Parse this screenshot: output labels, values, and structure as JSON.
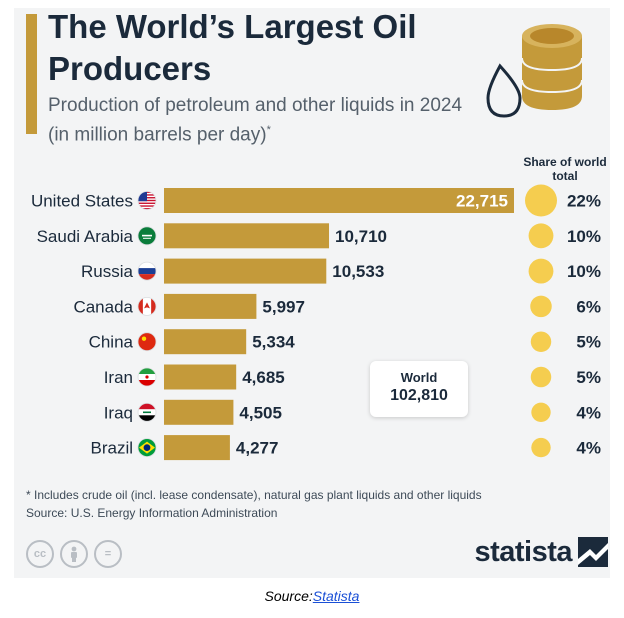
{
  "title": "The World’s Largest Oil Producers",
  "subtitle": "Production of petroleum and other liquids in 2024 (in million barrels per day)",
  "subtitle_mark": "*",
  "share_header": "Share of world total",
  "world": {
    "label": "World",
    "value": "102,810"
  },
  "footnote": "* Includes crude oil (incl. lease condensate), natural gas plant liquids and other liquids",
  "source_note": "Source: U.S. Energy Information Administration",
  "brand": "statista",
  "source_line": {
    "prefix": "Source:",
    "link": "Statista"
  },
  "icons": [
    "oil-barrel-icon",
    "oil-drop-icon",
    "cc-license-icon",
    "attribution-icon",
    "no-derivatives-icon",
    "statista-logo-icon"
  ],
  "cc_icons": [
    "cc",
    "by",
    "="
  ],
  "colors": {
    "bar": "#c49a3a",
    "bubble": "#f5cd4f",
    "text": "#1b2a3b",
    "bar_label_inside": "#ffffff"
  },
  "chart_data": {
    "type": "bar",
    "orientation": "horizontal",
    "categories": [
      "United States",
      "Saudi Arabia",
      "Russia",
      "Canada",
      "China",
      "Iran",
      "Iraq",
      "Brazil"
    ],
    "values": [
      22715,
      10710,
      10533,
      5997,
      5334,
      4685,
      4505,
      4277
    ],
    "value_labels": [
      "22,715",
      "10,710",
      "10,533",
      "5,997",
      "5,334",
      "4,685",
      "4,505",
      "4,277"
    ],
    "share": [
      22,
      10,
      10,
      6,
      5,
      5,
      4,
      4
    ],
    "share_labels": [
      "22%",
      "10%",
      "10%",
      "6%",
      "5%",
      "5%",
      "4%",
      "4%"
    ],
    "flags": [
      "us-flag-icon",
      "saudi-arabia-flag-icon",
      "russia-flag-icon",
      "canada-flag-icon",
      "china-flag-icon",
      "iran-flag-icon",
      "iraq-flag-icon",
      "brazil-flag-icon"
    ],
    "xlim": [
      0,
      22715
    ],
    "grid": false,
    "legend": "none"
  }
}
